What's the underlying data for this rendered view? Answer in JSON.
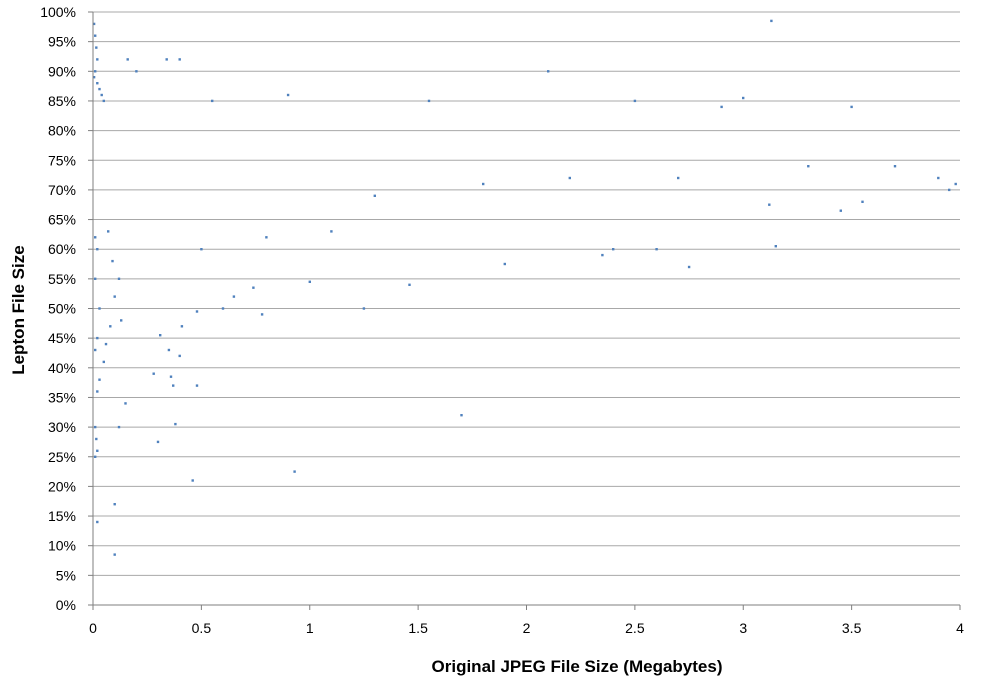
{
  "chart_data": {
    "type": "scatter",
    "title": "",
    "xlabel": "Original JPEG File Size (Megabytes)",
    "ylabel": "Lepton File Size",
    "xlim": [
      0,
      4
    ],
    "ylim": [
      0,
      1
    ],
    "x_ticks": [
      "0",
      "0.5",
      "1",
      "1.5",
      "2",
      "2.5",
      "3",
      "3.5",
      "4"
    ],
    "y_ticks": [
      "0%",
      "5%",
      "10%",
      "15%",
      "20%",
      "25%",
      "30%",
      "35%",
      "40%",
      "45%",
      "50%",
      "55%",
      "60%",
      "65%",
      "70%",
      "75%",
      "80%",
      "85%",
      "90%",
      "95%",
      "100%"
    ],
    "grid": "horizontal",
    "legend": "none",
    "marker_color": "#4f81bd",
    "series": [
      {
        "points": [
          [
            0.005,
            0.98
          ],
          [
            0.01,
            0.96
          ],
          [
            0.015,
            0.94
          ],
          [
            0.02,
            0.92
          ],
          [
            0.01,
            0.9
          ],
          [
            0.005,
            0.89
          ],
          [
            0.02,
            0.88
          ],
          [
            0.03,
            0.87
          ],
          [
            0.04,
            0.86
          ],
          [
            0.05,
            0.85
          ],
          [
            0.01,
            0.62
          ],
          [
            0.02,
            0.6
          ],
          [
            0.01,
            0.55
          ],
          [
            0.03,
            0.5
          ],
          [
            0.02,
            0.45
          ],
          [
            0.01,
            0.43
          ],
          [
            0.03,
            0.38
          ],
          [
            0.02,
            0.36
          ],
          [
            0.01,
            0.3
          ],
          [
            0.015,
            0.28
          ],
          [
            0.02,
            0.26
          ],
          [
            0.01,
            0.25
          ],
          [
            0.02,
            0.14
          ],
          [
            0.1,
            0.17
          ],
          [
            0.1,
            0.085
          ],
          [
            0.12,
            0.3
          ],
          [
            0.15,
            0.34
          ],
          [
            0.05,
            0.41
          ],
          [
            0.06,
            0.44
          ],
          [
            0.08,
            0.47
          ],
          [
            0.1,
            0.52
          ],
          [
            0.12,
            0.55
          ],
          [
            0.09,
            0.58
          ],
          [
            0.07,
            0.63
          ],
          [
            0.13,
            0.48
          ],
          [
            0.28,
            0.39
          ],
          [
            0.3,
            0.275
          ],
          [
            0.31,
            0.455
          ],
          [
            0.35,
            0.43
          ],
          [
            0.36,
            0.385
          ],
          [
            0.37,
            0.37
          ],
          [
            0.38,
            0.305
          ],
          [
            0.4,
            0.42
          ],
          [
            0.41,
            0.47
          ],
          [
            0.46,
            0.21
          ],
          [
            0.48,
            0.37
          ],
          [
            0.48,
            0.495
          ],
          [
            0.6,
            0.5
          ],
          [
            0.65,
            0.52
          ],
          [
            0.74,
            0.535
          ],
          [
            0.78,
            0.49
          ],
          [
            0.93,
            0.225
          ],
          [
            1.0,
            0.545
          ],
          [
            1.25,
            0.5
          ],
          [
            1.46,
            0.54
          ],
          [
            1.7,
            0.32
          ],
          [
            1.9,
            0.575
          ],
          [
            2.35,
            0.59
          ],
          [
            2.4,
            0.6
          ],
          [
            2.6,
            0.6
          ],
          [
            2.75,
            0.57
          ],
          [
            3.13,
            0.985
          ],
          [
            3.12,
            0.675
          ],
          [
            3.15,
            0.605
          ],
          [
            3.0,
            0.855
          ],
          [
            2.9,
            0.84
          ],
          [
            2.1,
            0.9
          ],
          [
            3.45,
            0.665
          ],
          [
            3.55,
            0.68
          ],
          [
            3.7,
            0.74
          ],
          [
            0.34,
            0.92
          ],
          [
            0.4,
            0.92
          ],
          [
            0.2,
            0.9
          ],
          [
            0.16,
            0.92
          ],
          [
            1.3,
            0.69
          ],
          [
            1.8,
            0.71
          ],
          [
            2.2,
            0.72
          ],
          [
            2.7,
            0.72
          ],
          [
            3.3,
            0.74
          ],
          [
            3.9,
            0.72
          ],
          [
            3.95,
            0.7
          ],
          [
            3.98,
            0.71
          ],
          [
            0.55,
            0.85
          ],
          [
            0.9,
            0.86
          ],
          [
            1.55,
            0.85
          ],
          [
            2.5,
            0.85
          ],
          [
            3.5,
            0.84
          ],
          [
            0.8,
            0.62
          ],
          [
            0.5,
            0.6
          ],
          [
            1.1,
            0.63
          ]
        ]
      }
    ]
  }
}
